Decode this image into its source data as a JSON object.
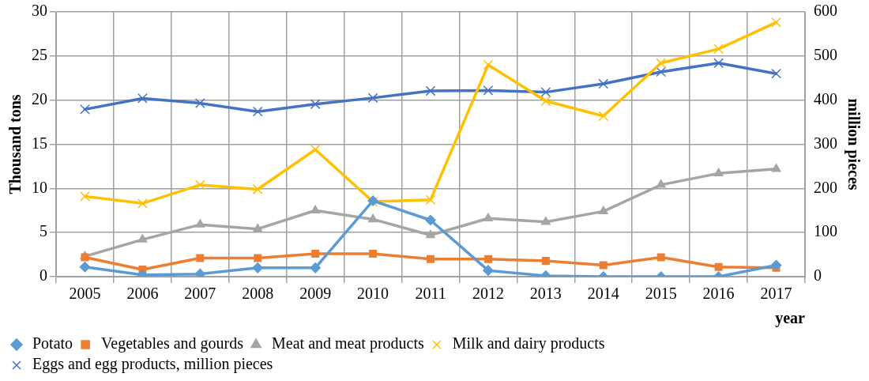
{
  "chart_data": {
    "type": "line",
    "xlabel": "year",
    "ylabel": "Thousand tons",
    "y2label": "million pieces",
    "categories": [
      "2005",
      "2006",
      "2007",
      "2008",
      "2009",
      "2010",
      "2011",
      "2012",
      "2013",
      "2014",
      "2015",
      "2016",
      "2017"
    ],
    "ylim": [
      0,
      30
    ],
    "yticks": [
      0,
      5,
      10,
      15,
      20,
      25,
      30
    ],
    "y2lim": [
      0,
      600
    ],
    "y2ticks": [
      0,
      100,
      200,
      300,
      400,
      500,
      600
    ],
    "grid": true,
    "legend": "bottom",
    "series": [
      {
        "name": "Potato",
        "color": "#5b9bd5",
        "marker": "diamond",
        "values": [
          1.1,
          0.2,
          0.3,
          1.0,
          1.0,
          8.6,
          6.4,
          0.7,
          0.1,
          0,
          0,
          0,
          1.3
        ]
      },
      {
        "name": "Vegetables and gourds",
        "color": "#ed7d31",
        "marker": "square",
        "values": [
          2.2,
          0.8,
          2.1,
          2.1,
          2.6,
          2.6,
          2.0,
          2.0,
          1.8,
          1.3,
          2.2,
          1.1,
          1.0
        ]
      },
      {
        "name": "Meat and meat products",
        "color": "#a5a5a5",
        "marker": "triangle",
        "values": [
          2.3,
          4.2,
          5.9,
          5.4,
          7.5,
          6.5,
          4.7,
          6.6,
          6.2,
          7.4,
          10.4,
          11.7,
          12.2
        ]
      },
      {
        "name": "Milk and dairy products",
        "color": "#ffc000",
        "marker": "cross",
        "values": [
          9.1,
          8.3,
          10.4,
          9.9,
          14.4,
          8.5,
          8.7,
          24.0,
          19.9,
          18.2,
          24.2,
          25.8,
          28.8
        ]
      },
      {
        "name": "Eggs and egg products, million pieces",
        "color": "#4472c4",
        "marker": "cross",
        "axis": "y2",
        "values": [
          379,
          404,
          393,
          374,
          391,
          405,
          421,
          422,
          418,
          437,
          464,
          484,
          460
        ]
      }
    ]
  }
}
